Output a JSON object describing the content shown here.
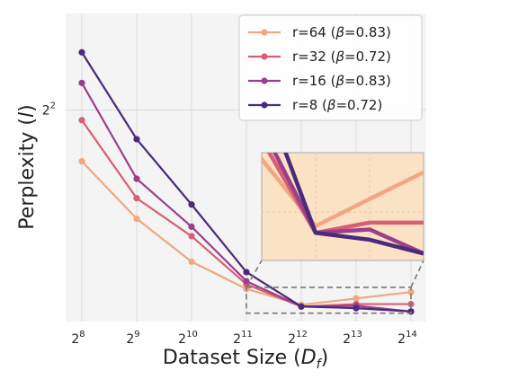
{
  "chart_data": {
    "type": "line",
    "x_scale": "log2",
    "y_scale": "log2",
    "x": [
      256,
      512,
      1024,
      2048,
      4096,
      8192,
      16384
    ],
    "x_ticks": [
      {
        "base": "2",
        "exp": "8"
      },
      {
        "base": "2",
        "exp": "9"
      },
      {
        "base": "2",
        "exp": "10"
      },
      {
        "base": "2",
        "exp": "11"
      },
      {
        "base": "2",
        "exp": "12"
      },
      {
        "base": "2",
        "exp": "13"
      },
      {
        "base": "2",
        "exp": "14"
      }
    ],
    "y_ticks": [
      {
        "base": "2",
        "exp": "2",
        "value": 4
      }
    ],
    "ylim": [
      2.36,
      5.09
    ],
    "xlabel": {
      "prefix": "Dataset Size (",
      "var": "D",
      "sub": "f",
      "suffix": ")"
    },
    "ylabel": {
      "prefix": "Perplexity (",
      "var": "l",
      "suffix": ")"
    },
    "grid": true,
    "legend_position": "top-right",
    "series": [
      {
        "name": "r=64 (β=0.83)",
        "label_pre": "r=64 (",
        "label_sym": "β",
        "label_post": "=0.83)",
        "color": "#f1a77f",
        "values": [
          3.52,
          3.05,
          2.74,
          2.56,
          2.46,
          2.5,
          2.54
        ]
      },
      {
        "name": "r=32 (β=0.72)",
        "label_pre": "r=32 (",
        "label_sym": "β",
        "label_post": "=0.72)",
        "color": "#d65f73",
        "values": [
          3.9,
          3.21,
          2.92,
          2.59,
          2.45,
          2.465,
          2.465
        ]
      },
      {
        "name": "r=16 (β=0.83)",
        "label_pre": "r=16 (",
        "label_sym": "β",
        "label_post": "=0.83)",
        "color": "#9c3f8a",
        "values": [
          4.28,
          3.37,
          2.99,
          2.61,
          2.45,
          2.455,
          2.42
        ]
      },
      {
        "name": "r=8 (β=0.72)",
        "label_pre": "r=8 (",
        "label_sym": "β",
        "label_post": "=0.72)",
        "color": "#4a2a7a",
        "values": [
          4.62,
          3.72,
          3.16,
          2.67,
          2.45,
          2.44,
          2.42
        ]
      }
    ],
    "inset": {
      "x_range": [
        2048,
        16384
      ],
      "y_range": [
        2.41,
        2.57
      ],
      "background": "#fbe2c5"
    }
  }
}
